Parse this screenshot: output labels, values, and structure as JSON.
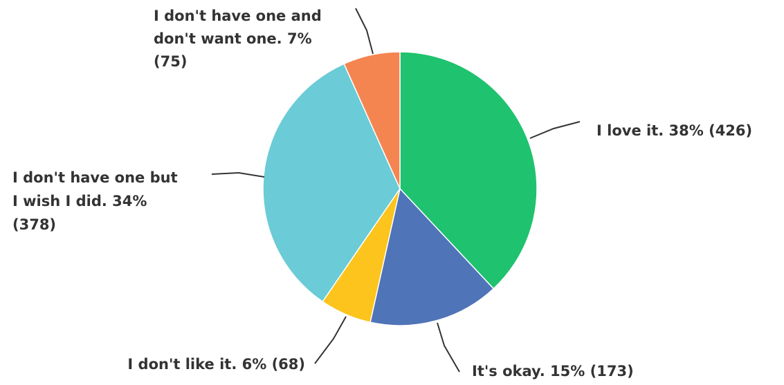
{
  "chart_data": {
    "type": "pie",
    "title": "",
    "slices": [
      {
        "label": "I love it.",
        "percent": "38%",
        "count": "(426)",
        "value": 426,
        "color": "#1fc26e"
      },
      {
        "label": "It's okay.",
        "percent": "15%",
        "count": "(173)",
        "value": 173,
        "color": "#4f74b8"
      },
      {
        "label": "I don't like it.",
        "percent": "6%",
        "count": "(68)",
        "value": 68,
        "color": "#fcc41c"
      },
      {
        "label": "I don't have one but I wish I did.",
        "percent": "34%",
        "count": "(378)",
        "value": 378,
        "color": "#6bcbd6"
      },
      {
        "label": "I don't have one and don't want one.",
        "percent": "7%",
        "count": "(75)",
        "value": 75,
        "color": "#f58550"
      }
    ],
    "label_lines": [
      [
        "I love it.  38% (426)"
      ],
      [
        "It's okay. 15% (173)"
      ],
      [
        "I don't like it. 6% (68)"
      ],
      [
        "I don't have one but",
        "I wish I did. 34%",
        "(378)"
      ],
      [
        "I don't have one and",
        "don't want one. 7%",
        "(75)"
      ]
    ]
  }
}
